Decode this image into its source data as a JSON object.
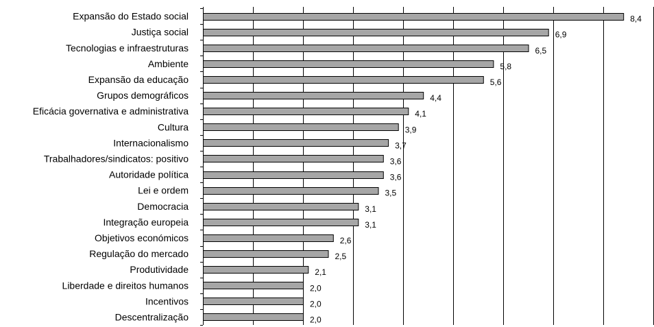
{
  "chart_data": {
    "type": "bar",
    "orientation": "horizontal",
    "categories": [
      "Expansão do Estado social",
      "Justiça social",
      "Tecnologias e infraestruturas",
      "Ambiente",
      "Expansão da educação",
      "Grupos demográficos",
      "Eficácia governativa e administrativa",
      "Cultura",
      "Internacionalismo",
      "Trabalhadores/sindicatos: positivo",
      "Autoridade política",
      "Lei e ordem",
      "Democracia",
      "Integração europeia",
      "Objetivos económicos",
      "Regulação do mercado",
      "Produtividade",
      "Liberdade e direitos humanos",
      "Incentivos",
      "Descentralização"
    ],
    "values": [
      8.4,
      6.9,
      6.5,
      5.8,
      5.6,
      4.4,
      4.1,
      3.9,
      3.7,
      3.6,
      3.6,
      3.5,
      3.1,
      3.1,
      2.6,
      2.5,
      2.1,
      2.0,
      2.0,
      2.0
    ],
    "value_labels": [
      "8,4",
      "6,9",
      "6,5",
      "5,8",
      "5,6",
      "4,4",
      "4,1",
      "3,9",
      "3,7",
      "3,6",
      "3,6",
      "3,5",
      "3,1",
      "3,1",
      "2,6",
      "2,5",
      "2,1",
      "2,0",
      "2,0",
      "2,0"
    ],
    "title": "",
    "xlabel": "",
    "ylabel": "",
    "xlim": [
      0,
      9
    ],
    "grid_x_step": 1,
    "grid": true,
    "legend": "none",
    "colors": {
      "bar_fill": "#a6a6a6",
      "bar_stroke": "#000000",
      "grid": "#000000",
      "axis": "#000000"
    }
  }
}
